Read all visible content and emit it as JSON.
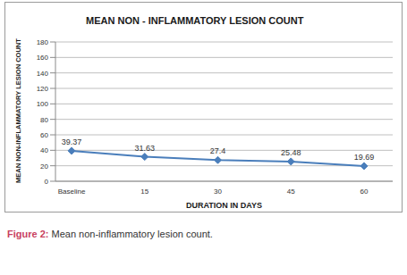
{
  "chart_data": {
    "type": "line",
    "title": "MEAN NON - INFLAMMATORY LESION COUNT",
    "x_label": "DURATION IN DAYS",
    "y_label": "MEAN NON-INFLAMMATORY LESION COUNT",
    "categories": [
      "Baseline",
      "15",
      "30",
      "45",
      "60"
    ],
    "values": [
      39.37,
      31.63,
      27.4,
      25.48,
      19.69
    ],
    "color": "#4a7ebb",
    "marker": "diamond",
    "ylim": [
      0,
      180
    ],
    "yticks": [
      0,
      20,
      40,
      60,
      80,
      100,
      120,
      140,
      160,
      180
    ],
    "grid": true,
    "data_labels": true
  },
  "caption": {
    "label": "Figure 2:",
    "text": "Mean non-inflammatory lesion count."
  }
}
